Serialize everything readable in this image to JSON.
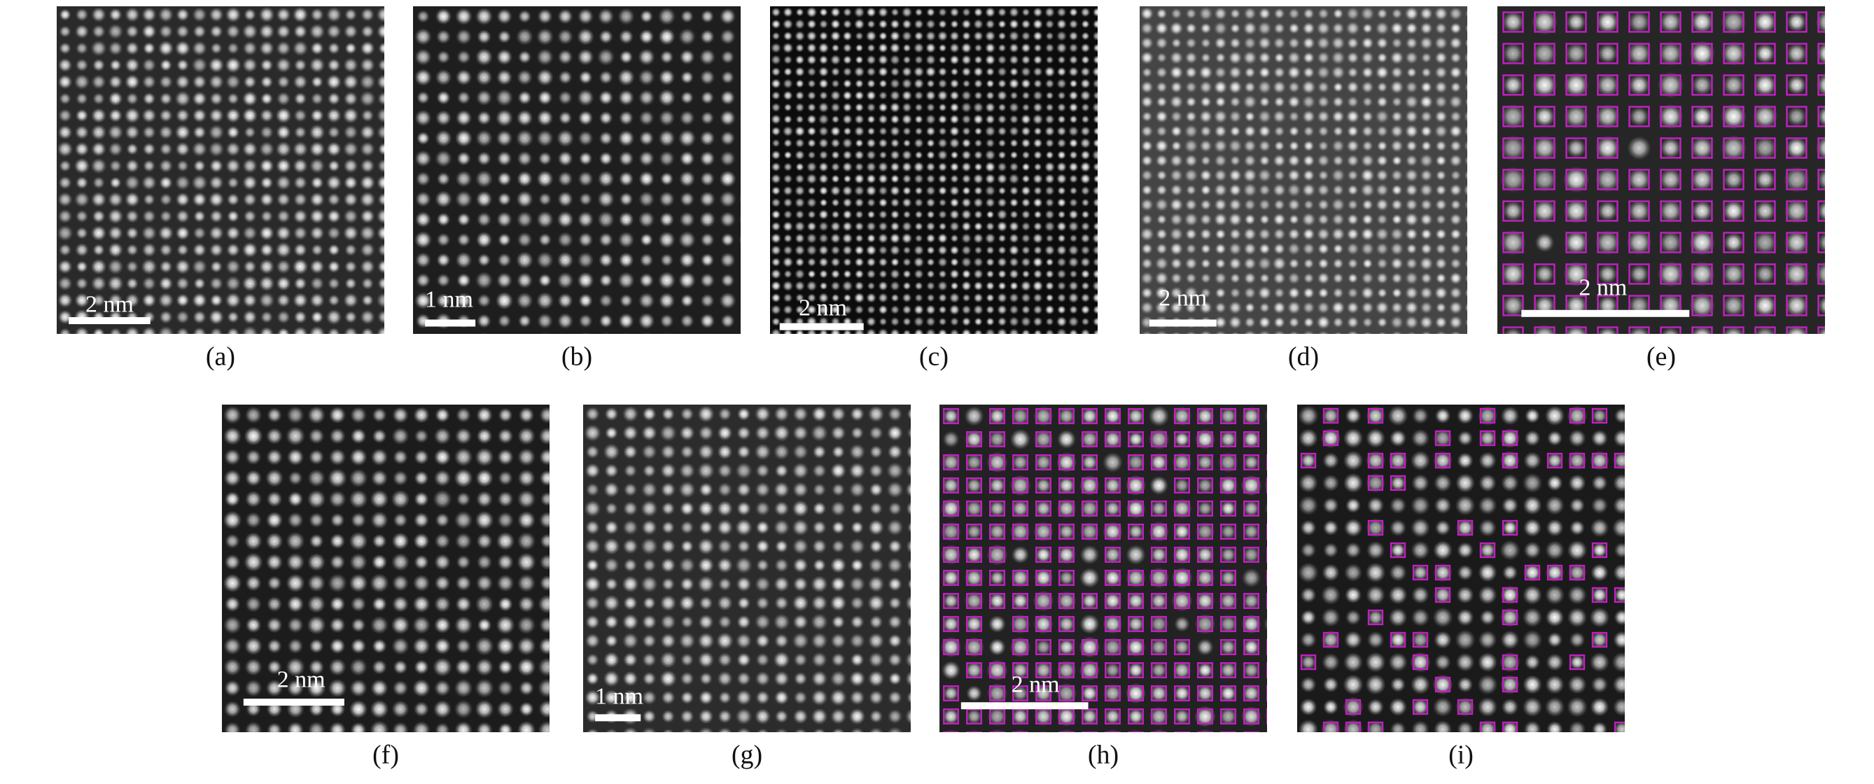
{
  "panels": [
    {
      "label": "(a)",
      "scale_bar": "2 nm"
    },
    {
      "label": "(b)",
      "scale_bar": "1 nm"
    },
    {
      "label": "(c)",
      "scale_bar": "2 nm"
    },
    {
      "label": "(d)",
      "scale_bar": "2 nm"
    },
    {
      "label": "(e)",
      "scale_bar": "2 nm"
    },
    {
      "label": "(f)",
      "scale_bar": "2 nm"
    },
    {
      "label": "(g)",
      "scale_bar": "1 nm"
    },
    {
      "label": "(h)",
      "scale_bar": "2 nm"
    },
    {
      "label": "(i)"
    }
  ]
}
